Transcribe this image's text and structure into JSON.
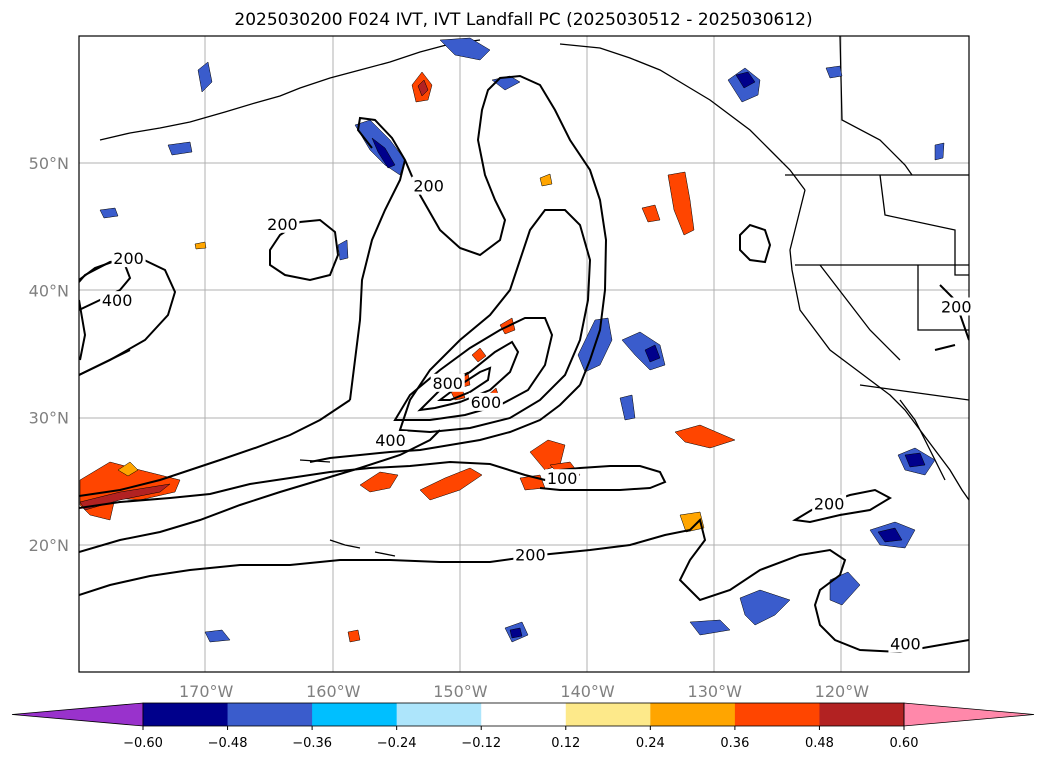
{
  "title": "2025030200 F024 IVT, IVT Landfall PC (2025030512 - 2025030612)",
  "axes": {
    "lat_labels": [
      {
        "lat": 50,
        "label": "50°N"
      },
      {
        "lat": 40,
        "label": "40°N"
      },
      {
        "lat": 30,
        "label": "30°N"
      },
      {
        "lat": 20,
        "label": "20°N"
      }
    ],
    "lon_labels": [
      {
        "lon": -170,
        "label": "170°W"
      },
      {
        "lon": -160,
        "label": "160°W"
      },
      {
        "lon": -150,
        "label": "150°W"
      },
      {
        "lon": -140,
        "label": "140°W"
      },
      {
        "lon": -130,
        "label": "130°W"
      },
      {
        "lon": -120,
        "label": "120°W"
      }
    ],
    "lon_range": [
      -180,
      -110
    ],
    "lat_range": [
      10,
      60
    ]
  },
  "contour_labels": [
    {
      "text": "200",
      "lat": 42.3,
      "lon": -176.1
    },
    {
      "text": "400",
      "lat": 39.0,
      "lon": -177.0
    },
    {
      "text": "200",
      "lat": 45.0,
      "lon": -164.0
    },
    {
      "text": "200",
      "lat": 48.0,
      "lon": -152.5
    },
    {
      "text": "800",
      "lat": 32.5,
      "lon": -151.0
    },
    {
      "text": "600",
      "lat": 31.0,
      "lon": -148.0
    },
    {
      "text": "400",
      "lat": 28.0,
      "lon": -155.5
    },
    {
      "text": "100",
      "lat": 25.0,
      "lon": -142.0
    },
    {
      "text": "200",
      "lat": 19.0,
      "lon": -144.5
    },
    {
      "text": "200",
      "lat": 23.0,
      "lon": -121.0
    },
    {
      "text": "400",
      "lat": 12.0,
      "lon": -115.0
    },
    {
      "text": "200",
      "lat": 38.5,
      "lon": -111.0
    }
  ],
  "colorbar": {
    "ticks": [
      "−0.60",
      "−0.48",
      "−0.36",
      "−0.24",
      "−0.12",
      "0.12",
      "0.24",
      "0.36",
      "0.48",
      "0.60"
    ],
    "colors": [
      "#9932cc",
      "#00008b",
      "#3a5ccc",
      "#00bfff",
      "#ade5fb",
      "#ffffff",
      "#fde98a",
      "#ffa500",
      "#ff4500",
      "#b22222",
      "#ff88aa"
    ]
  }
}
